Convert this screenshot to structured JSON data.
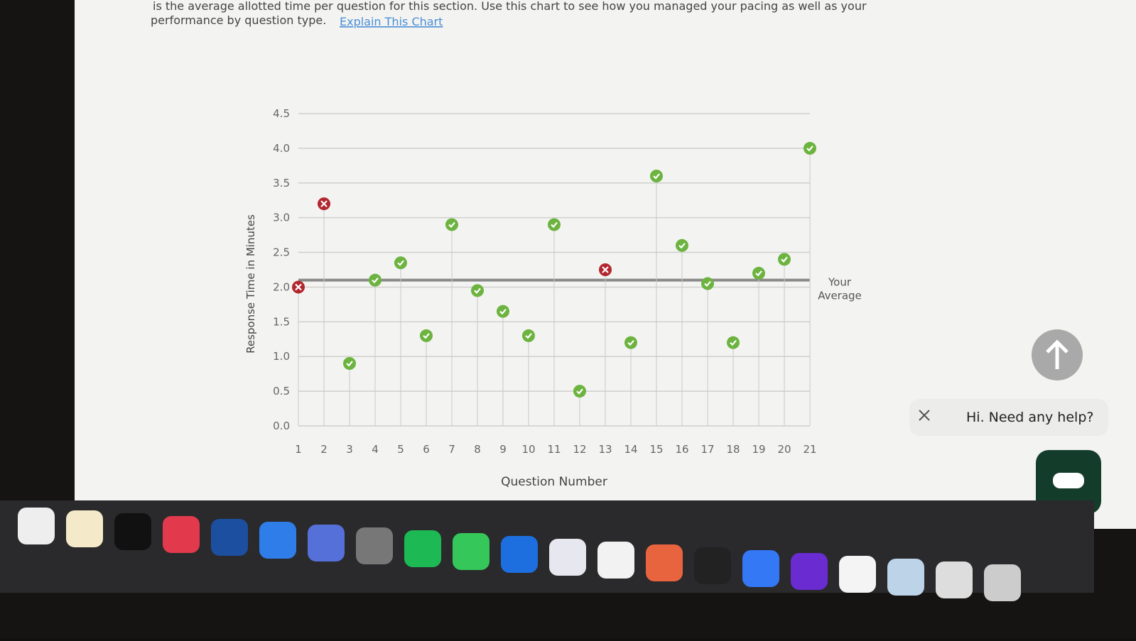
{
  "header": {
    "line1": "is the average allotted time per question for this section. Use this chart to see how you managed your pacing as well as your",
    "line2": "performance by question type.",
    "link": "Explain This Chart"
  },
  "chart_data": {
    "type": "scatter",
    "xlabel": "Question Number",
    "ylabel": "Response Time in Minutes",
    "x": [
      1,
      2,
      3,
      4,
      5,
      6,
      7,
      8,
      9,
      10,
      11,
      12,
      13,
      14,
      15,
      16,
      17,
      18,
      19,
      20,
      21
    ],
    "values": [
      2.0,
      3.2,
      0.9,
      2.1,
      2.35,
      1.3,
      2.9,
      1.95,
      1.65,
      1.3,
      2.9,
      0.5,
      2.25,
      1.2,
      3.6,
      2.6,
      2.05,
      1.2,
      2.2,
      2.4,
      4.0
    ],
    "point_colors": [
      "#b3262e",
      "#b3262e",
      "#6cb33f",
      "#6cb33f",
      "#6cb33f",
      "#6cb33f",
      "#6cb33f",
      "#6cb33f",
      "#6cb33f",
      "#6cb33f",
      "#6cb33f",
      "#6cb33f",
      "#b3262e",
      "#6cb33f",
      "#6cb33f",
      "#6cb33f",
      "#6cb33f",
      "#6cb33f",
      "#6cb33f",
      "#6cb33f",
      "#6cb33f"
    ],
    "average": 2.1,
    "average_label_lines": [
      "Your",
      "Average"
    ],
    "average_color": "#8a8a8a",
    "xlim": [
      1,
      21
    ],
    "xticks": [
      1,
      2,
      3,
      4,
      5,
      6,
      7,
      8,
      9,
      10,
      11,
      12,
      13,
      14,
      15,
      16,
      17,
      18,
      19,
      20,
      21
    ],
    "ylim": [
      0,
      4.5
    ],
    "yticks": [
      {
        "value": 0,
        "label": "0.0"
      },
      0.5,
      {
        "value": 1,
        "label": "1.0"
      },
      1.5,
      {
        "value": 2,
        "label": "2.0"
      },
      2.5,
      {
        "value": 3,
        "label": "3.0"
      },
      3.5,
      {
        "value": 4,
        "label": "4.0"
      },
      4.5
    ],
    "grid": true
  },
  "chat": {
    "message": "Hi. Need any help?"
  }
}
